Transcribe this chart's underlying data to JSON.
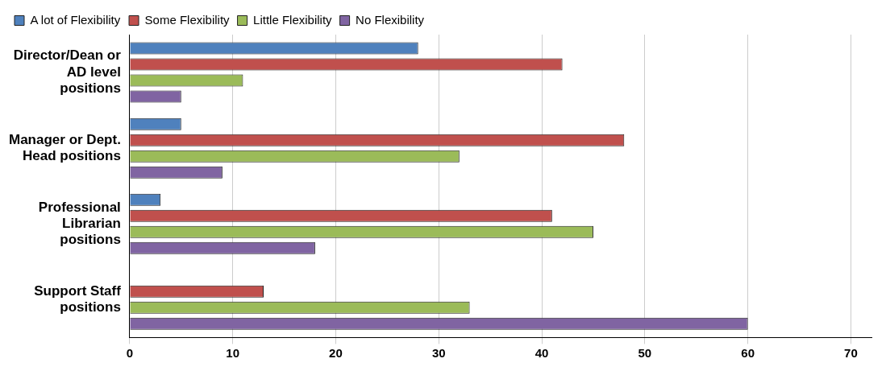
{
  "chart_data": {
    "type": "bar",
    "orientation": "horizontal",
    "categories": [
      "Director/Dean or AD level positions",
      "Manager or Dept. Head positions",
      "Professional Librarian positions",
      "Support Staff positions"
    ],
    "series": [
      {
        "name": "A lot of Flexibility",
        "color": "#4f81bd",
        "values": [
          28,
          5,
          3,
          0
        ]
      },
      {
        "name": "Some Flexibility",
        "color": "#c0504d",
        "values": [
          42,
          48,
          41,
          13
        ]
      },
      {
        "name": "Little Flexibility",
        "color": "#9bbb59",
        "values": [
          11,
          32,
          45,
          33
        ]
      },
      {
        "name": "No Flexibility",
        "color": "#8064a2",
        "values": [
          5,
          9,
          18,
          60
        ]
      }
    ],
    "xlim": [
      0,
      72
    ],
    "xticks": [
      0,
      10,
      20,
      30,
      40,
      50,
      60,
      70
    ],
    "grid": "x",
    "legend": "top left"
  }
}
